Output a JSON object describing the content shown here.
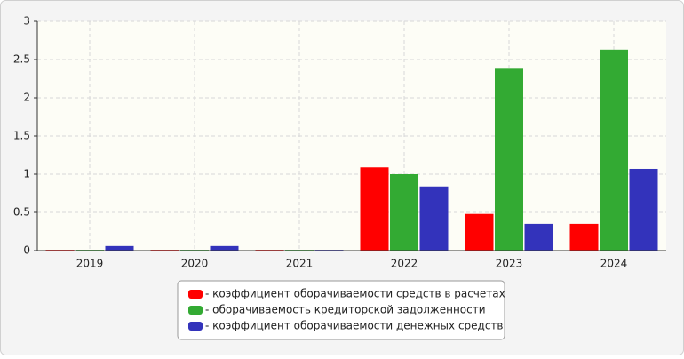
{
  "chart_data": {
    "type": "bar",
    "categories": [
      "2019",
      "2020",
      "2021",
      "2022",
      "2023",
      "2024"
    ],
    "series": [
      {
        "name": "- коэффициент оборачиваемости средств в расчетах",
        "color": "#ff0000",
        "values": [
          0.01,
          0.01,
          0.01,
          1.09,
          0.48,
          0.35
        ]
      },
      {
        "name": "- оборачиваемость кредиторской задолженности",
        "color": "#33aa33",
        "values": [
          0.01,
          0.01,
          0.01,
          1.0,
          2.38,
          2.63
        ]
      },
      {
        "name": "- коэффициент оборачиваемости денежных средств",
        "color": "#3333bb",
        "values": [
          0.06,
          0.06,
          0.01,
          0.84,
          0.35,
          1.07
        ]
      }
    ],
    "ylim": [
      0,
      3
    ],
    "yticks": [
      0,
      0.5,
      1,
      1.5,
      2,
      2.5,
      3
    ],
    "grid": true
  }
}
